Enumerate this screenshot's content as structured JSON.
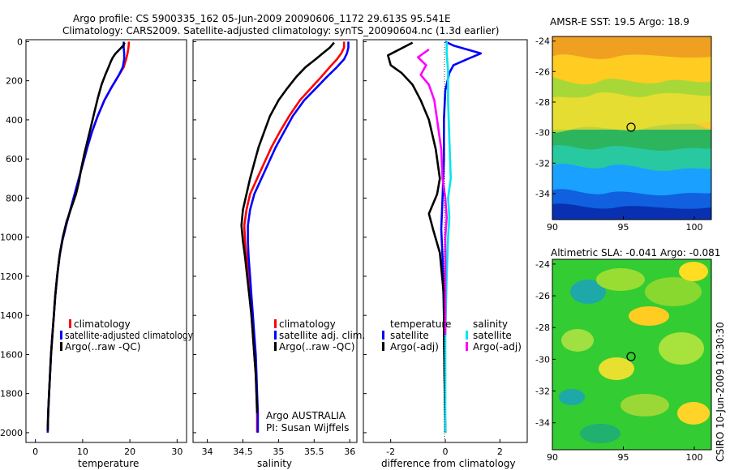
{
  "header": {
    "line1": "Argo profile: CS 5900335_162 05-Jun-2009 20090606_1172 29.613S 95.541E",
    "line2": "Climatology: CARS2009. Satellite-adjusted climatology: synTS_20090604.nc (1.3d earlier)"
  },
  "chart_data": [
    {
      "id": "temperature",
      "type": "line",
      "xlabel": "temperature",
      "ylabel": "",
      "xlim": [
        -2,
        32
      ],
      "ylim": [
        2050,
        -10
      ],
      "y_inverted": true,
      "xticks": [
        0,
        10,
        20,
        30
      ],
      "yticks": [
        0,
        200,
        400,
        600,
        800,
        1000,
        1200,
        1400,
        1600,
        1800,
        2000
      ],
      "legend": {
        "position": "center-right",
        "entries": [
          "climatology",
          "satellite-adjusted climatology",
          "Argo(..raw -QC)"
        ]
      },
      "series": [
        {
          "name": "climatology",
          "color": "#ff0000",
          "points": [
            [
              19.8,
              0
            ],
            [
              19.7,
              30
            ],
            [
              19.5,
              60
            ],
            [
              19.2,
              90
            ],
            [
              18.7,
              130
            ],
            [
              17.7,
              170
            ],
            [
              16.2,
              230
            ],
            [
              14.6,
              300
            ],
            [
              13.2,
              380
            ],
            [
              12.0,
              460
            ],
            [
              11.0,
              540
            ],
            [
              10.1,
              620
            ],
            [
              9.2,
              700
            ],
            [
              8.3,
              780
            ],
            [
              7.4,
              860
            ],
            [
              6.5,
              940
            ],
            [
              5.7,
              1020
            ],
            [
              5.1,
              1100
            ],
            [
              4.6,
              1200
            ],
            [
              4.2,
              1300
            ],
            [
              3.9,
              1400
            ],
            [
              3.6,
              1500
            ],
            [
              3.3,
              1600
            ],
            [
              3.1,
              1700
            ],
            [
              2.9,
              1800
            ],
            [
              2.7,
              1900
            ],
            [
              2.6,
              2000
            ]
          ]
        },
        {
          "name": "satellite-adjusted climatology",
          "color": "#0000ff",
          "points": [
            [
              18.7,
              0
            ],
            [
              18.7,
              30
            ],
            [
              18.8,
              60
            ],
            [
              18.8,
              90
            ],
            [
              18.5,
              130
            ],
            [
              17.7,
              170
            ],
            [
              16.2,
              230
            ],
            [
              14.6,
              300
            ],
            [
              13.2,
              380
            ],
            [
              12.0,
              460
            ],
            [
              11.0,
              540
            ],
            [
              10.1,
              620
            ],
            [
              9.2,
              700
            ],
            [
              8.3,
              780
            ],
            [
              7.4,
              860
            ],
            [
              6.5,
              940
            ],
            [
              5.7,
              1020
            ],
            [
              5.1,
              1100
            ],
            [
              4.6,
              1200
            ],
            [
              4.2,
              1300
            ],
            [
              3.9,
              1400
            ],
            [
              3.6,
              1500
            ],
            [
              3.3,
              1600
            ],
            [
              3.1,
              1700
            ],
            [
              2.9,
              1800
            ],
            [
              2.7,
              1900
            ],
            [
              2.6,
              2000
            ]
          ]
        },
        {
          "name": "Argo(..raw -QC)",
          "color": "#000000",
          "points": [
            [
              18.9,
              5
            ],
            [
              18.6,
              20
            ],
            [
              17.8,
              40
            ],
            [
              17.0,
              60
            ],
            [
              16.4,
              80
            ],
            [
              16.0,
              100
            ],
            [
              15.5,
              130
            ],
            [
              14.8,
              170
            ],
            [
              14.0,
              220
            ],
            [
              13.2,
              290
            ],
            [
              12.5,
              360
            ],
            [
              11.8,
              430
            ],
            [
              11.1,
              500
            ],
            [
              10.4,
              570
            ],
            [
              9.7,
              650
            ],
            [
              9.2,
              720
            ],
            [
              8.6,
              780
            ],
            [
              7.6,
              850
            ],
            [
              6.6,
              920
            ],
            [
              5.8,
              1000
            ],
            [
              5.2,
              1080
            ],
            [
              4.7,
              1180
            ],
            [
              4.2,
              1300
            ],
            [
              3.9,
              1400
            ],
            [
              3.6,
              1500
            ],
            [
              3.3,
              1600
            ],
            [
              3.1,
              1700
            ],
            [
              2.9,
              1800
            ],
            [
              2.7,
              1900
            ],
            [
              2.6,
              1990
            ]
          ]
        }
      ]
    },
    {
      "id": "salinity",
      "type": "line",
      "xlabel": "salinity",
      "xlim": [
        33.8,
        36.1
      ],
      "ylim": [
        2050,
        -10
      ],
      "y_inverted": true,
      "xticks": [
        34,
        34.5,
        35,
        35.5,
        36
      ],
      "legend": {
        "position": "center-right",
        "entries": [
          "climatology",
          "satellite adj. clim.",
          "Argo(..raw -QC)"
        ]
      },
      "annotation": [
        "Argo AUSTRALIA",
        "PI: Susan Wijffels"
      ],
      "series": [
        {
          "name": "climatology",
          "color": "#ff0000",
          "points": [
            [
              35.92,
              0
            ],
            [
              35.92,
              30
            ],
            [
              35.88,
              60
            ],
            [
              35.82,
              90
            ],
            [
              35.72,
              130
            ],
            [
              35.6,
              180
            ],
            [
              35.45,
              240
            ],
            [
              35.3,
              300
            ],
            [
              35.15,
              380
            ],
            [
              35.02,
              460
            ],
            [
              34.9,
              540
            ],
            [
              34.8,
              620
            ],
            [
              34.7,
              700
            ],
            [
              34.6,
              780
            ],
            [
              34.55,
              860
            ],
            [
              34.52,
              940
            ],
            [
              34.53,
              1020
            ],
            [
              34.55,
              1100
            ],
            [
              34.58,
              1200
            ],
            [
              34.6,
              1300
            ],
            [
              34.62,
              1400
            ],
            [
              34.64,
              1500
            ],
            [
              34.66,
              1600
            ],
            [
              34.68,
              1700
            ],
            [
              34.69,
              1800
            ],
            [
              34.7,
              1900
            ],
            [
              34.7,
              2000
            ]
          ]
        },
        {
          "name": "satellite adj. clim.",
          "color": "#0000ff",
          "points": [
            [
              35.98,
              0
            ],
            [
              35.98,
              30
            ],
            [
              35.96,
              60
            ],
            [
              35.92,
              90
            ],
            [
              35.82,
              130
            ],
            [
              35.68,
              180
            ],
            [
              35.52,
              240
            ],
            [
              35.36,
              300
            ],
            [
              35.2,
              380
            ],
            [
              35.08,
              460
            ],
            [
              34.96,
              540
            ],
            [
              34.86,
              620
            ],
            [
              34.76,
              700
            ],
            [
              34.66,
              780
            ],
            [
              34.6,
              860
            ],
            [
              34.57,
              940
            ],
            [
              34.57,
              1020
            ],
            [
              34.58,
              1100
            ],
            [
              34.6,
              1200
            ],
            [
              34.62,
              1300
            ],
            [
              34.64,
              1400
            ],
            [
              34.66,
              1500
            ],
            [
              34.68,
              1600
            ],
            [
              34.69,
              1700
            ],
            [
              34.7,
              1800
            ],
            [
              34.71,
              1900
            ],
            [
              34.71,
              2000
            ]
          ]
        },
        {
          "name": "Argo(..raw -QC)",
          "color": "#000000",
          "points": [
            [
              35.78,
              5
            ],
            [
              35.72,
              30
            ],
            [
              35.62,
              60
            ],
            [
              35.52,
              90
            ],
            [
              35.38,
              130
            ],
            [
              35.25,
              180
            ],
            [
              35.12,
              240
            ],
            [
              35.0,
              300
            ],
            [
              34.88,
              380
            ],
            [
              34.8,
              460
            ],
            [
              34.72,
              540
            ],
            [
              34.66,
              620
            ],
            [
              34.6,
              700
            ],
            [
              34.55,
              780
            ],
            [
              34.5,
              860
            ],
            [
              34.48,
              940
            ],
            [
              34.5,
              1020
            ],
            [
              34.53,
              1100
            ],
            [
              34.56,
              1200
            ],
            [
              34.59,
              1300
            ],
            [
              34.62,
              1400
            ],
            [
              34.64,
              1500
            ],
            [
              34.66,
              1600
            ],
            [
              34.68,
              1700
            ],
            [
              34.69,
              1800
            ],
            [
              34.7,
              1900
            ]
          ]
        }
      ]
    },
    {
      "id": "difference",
      "type": "line",
      "xlabel": "difference from climatology",
      "xlim": [
        -3.0,
        3.0
      ],
      "ylim": [
        2050,
        -10
      ],
      "y_inverted": true,
      "xticks": [
        -2,
        0,
        2
      ],
      "legend": {
        "position": "center",
        "groups": [
          {
            "title": "temperature",
            "entries": [
              "satellite",
              "Argo(-adj)"
            ]
          },
          {
            "title": "salinity",
            "entries": [
              "satellite",
              "Argo(-adj)"
            ]
          }
        ]
      },
      "series": [
        {
          "name": "temperature satellite",
          "color": "#0000ff",
          "points": [
            [
              0.0,
              0
            ],
            [
              0.3,
              20
            ],
            [
              1.3,
              60
            ],
            [
              0.8,
              90
            ],
            [
              0.3,
              120
            ],
            [
              0.15,
              160
            ],
            [
              0.0,
              250
            ],
            [
              -0.05,
              400
            ],
            [
              -0.05,
              600
            ],
            [
              -0.1,
              800
            ],
            [
              -0.15,
              960
            ],
            [
              -0.1,
              1100
            ],
            [
              -0.05,
              1400
            ],
            [
              0.0,
              2000
            ]
          ]
        },
        {
          "name": "temperature Argo(-adj)",
          "color": "#000000",
          "points": [
            [
              -1.2,
              5
            ],
            [
              -2.1,
              70
            ],
            [
              -2.0,
              120
            ],
            [
              -1.6,
              160
            ],
            [
              -1.2,
              220
            ],
            [
              -0.9,
              300
            ],
            [
              -0.6,
              400
            ],
            [
              -0.35,
              550
            ],
            [
              -0.2,
              700
            ],
            [
              -0.3,
              780
            ],
            [
              -0.6,
              880
            ],
            [
              -0.45,
              960
            ],
            [
              -0.2,
              1080
            ],
            [
              -0.05,
              1300
            ],
            [
              -0.05,
              1500
            ],
            [
              0.0,
              2000
            ]
          ]
        },
        {
          "name": "salinity satellite",
          "color": "#00e5ee",
          "points": [
            [
              0.05,
              0
            ],
            [
              0.05,
              60
            ],
            [
              0.1,
              150
            ],
            [
              0.1,
              300
            ],
            [
              0.15,
              500
            ],
            [
              0.2,
              700
            ],
            [
              0.1,
              800
            ],
            [
              0.15,
              900
            ],
            [
              0.1,
              1000
            ],
            [
              0.05,
              1200
            ],
            [
              0.0,
              1500
            ],
            [
              0.0,
              2000
            ]
          ]
        },
        {
          "name": "salinity Argo(-adj)",
          "color": "#ff00ff",
          "points": [
            [
              -0.6,
              40
            ],
            [
              -1.0,
              80
            ],
            [
              -0.7,
              120
            ],
            [
              -0.9,
              170
            ],
            [
              -0.6,
              220
            ],
            [
              -0.4,
              300
            ],
            [
              -0.3,
              400
            ],
            [
              -0.15,
              550
            ],
            [
              -0.1,
              700
            ],
            [
              0.0,
              800
            ],
            [
              0.05,
              900
            ],
            [
              0.0,
              1000
            ],
            [
              0.0,
              1200
            ],
            [
              0.0,
              1500
            ]
          ]
        }
      ]
    },
    {
      "id": "sst-map",
      "type": "heatmap",
      "title_prefix": "AMSR-E SST: ",
      "title_sst": "19.5",
      "title_mid": " Argo: ",
      "title_argo": "18.9",
      "sst": 19.5,
      "argo": 18.9,
      "xlim": [
        90,
        101.2
      ],
      "ylim": [
        -35.7,
        -23.7
      ],
      "xticks": [
        90,
        95,
        100
      ],
      "yticks": [
        -24,
        -26,
        -28,
        -30,
        -32,
        -34
      ],
      "marker": [
        95.54,
        -29.61
      ]
    },
    {
      "id": "sla-map",
      "type": "heatmap",
      "title_prefix": "Altimetric SLA: ",
      "title_sla": "-0.041",
      "title_mid": " Argo: ",
      "title_argo": "-0.081",
      "sla": -0.041,
      "argo": -0.081,
      "xlim": [
        90,
        101.2
      ],
      "ylim": [
        -35.7,
        -23.7
      ],
      "xticks": [
        90,
        95,
        100
      ],
      "yticks": [
        -24,
        -26,
        -28,
        -30,
        -32,
        -34
      ],
      "marker": [
        95.54,
        -29.61
      ]
    }
  ],
  "credit": "CSIRO 10-Jun-2009 10:30:30"
}
